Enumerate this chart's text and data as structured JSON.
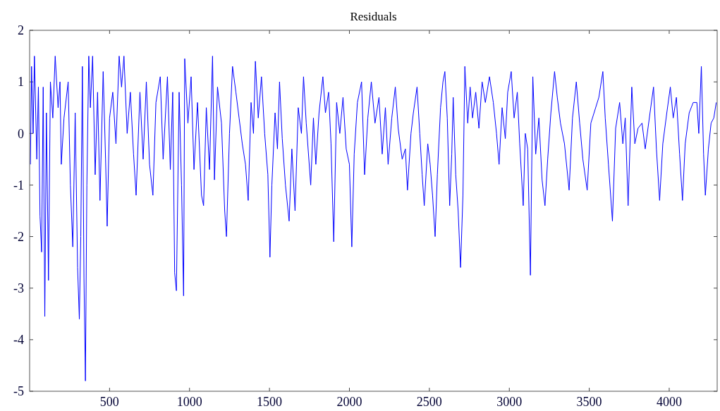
{
  "chart_data": {
    "type": "line",
    "title": "Residuals",
    "x": [
      5,
      12,
      22,
      30,
      45,
      55,
      65,
      75,
      85,
      95,
      105,
      118,
      130,
      145,
      160,
      178,
      190,
      198,
      215,
      241,
      255,
      270,
      285,
      300,
      311,
      320,
      330,
      340,
      349,
      358,
      370,
      380,
      394,
      410,
      425,
      440,
      460,
      475,
      485,
      500,
      520,
      540,
      560,
      575,
      590,
      610,
      630,
      650,
      666,
      690,
      710,
      730,
      750,
      771,
      790,
      817,
      835,
      862,
      880,
      895,
      907,
      918,
      935,
      950,
      963,
      970,
      990,
      1010,
      1028,
      1050,
      1075,
      1088,
      1105,
      1125,
      1144,
      1156,
      1175,
      1200,
      1220,
      1231,
      1250,
      1269,
      1290,
      1310,
      1330,
      1350,
      1367,
      1385,
      1400,
      1412,
      1430,
      1450,
      1470,
      1490,
      1503,
      1515,
      1535,
      1550,
      1563,
      1580,
      1600,
      1623,
      1640,
      1660,
      1680,
      1700,
      1713,
      1730,
      1758,
      1775,
      1790,
      1810,
      1834,
      1850,
      1870,
      1885,
      1902,
      1920,
      1940,
      1960,
      1980,
      2000,
      2015,
      2030,
      2050,
      2076,
      2095,
      2115,
      2137,
      2160,
      2185,
      2205,
      2225,
      2242,
      2265,
      2287,
      2305,
      2330,
      2350,
      2363,
      2385,
      2400,
      2423,
      2440,
      2455,
      2468,
      2490,
      2505,
      2520,
      2536,
      2550,
      2570,
      2585,
      2597,
      2612,
      2627,
      2640,
      2649,
      2665,
      2680,
      2695,
      2710,
      2722,
      2740,
      2755,
      2770,
      2790,
      2810,
      2830,
      2850,
      2876,
      2900,
      2920,
      2936,
      2955,
      2975,
      2990,
      3012,
      3030,
      3050,
      3065,
      3087,
      3100,
      3115,
      3132,
      3147,
      3165,
      3185,
      3205,
      3223,
      3240,
      3260,
      3283,
      3300,
      3320,
      3345,
      3374,
      3395,
      3419,
      3440,
      3460,
      3487,
      3510,
      3530,
      3560,
      3585,
      3600,
      3620,
      3645,
      3665,
      3690,
      3710,
      3725,
      3743,
      3766,
      3785,
      3805,
      3830,
      3850,
      3880,
      3902,
      3920,
      3940,
      3960,
      3985,
      4007,
      4025,
      4045,
      4065,
      4083,
      4100,
      4125,
      4150,
      4173,
      4185,
      4201,
      4215,
      4226,
      4245,
      4262,
      4279,
      4294
    ],
    "series": [
      {
        "color": "#0000ff",
        "values": [
          -0.6,
          1.3,
          0.0,
          1.5,
          -0.5,
          0.9,
          -1.6,
          -2.3,
          0.9,
          -3.55,
          0.4,
          -2.85,
          1.0,
          0.3,
          1.5,
          0.5,
          1.0,
          -0.6,
          0.3,
          1.0,
          -1.0,
          -2.2,
          0.4,
          -2.6,
          -3.6,
          -2.0,
          1.3,
          -2.8,
          -4.8,
          -1.0,
          1.5,
          0.5,
          1.5,
          -0.8,
          0.8,
          -1.3,
          1.2,
          -0.5,
          -1.8,
          0.3,
          0.8,
          -0.2,
          1.5,
          0.9,
          1.5,
          0.0,
          0.8,
          -0.4,
          -1.2,
          0.8,
          -0.5,
          1.0,
          -0.6,
          -1.2,
          0.6,
          1.1,
          -0.5,
          1.1,
          -0.7,
          0.8,
          -2.7,
          -3.05,
          0.8,
          -1.0,
          -3.15,
          1.45,
          0.2,
          1.1,
          -0.7,
          0.6,
          -1.2,
          -1.4,
          0.5,
          -0.7,
          1.5,
          -0.9,
          0.9,
          0.2,
          -1.5,
          -2.0,
          0.0,
          1.3,
          0.8,
          0.3,
          -0.2,
          -0.6,
          -1.3,
          0.6,
          0.0,
          1.4,
          0.3,
          1.1,
          0.0,
          -0.8,
          -2.4,
          -1.0,
          0.4,
          -0.3,
          1.0,
          -0.1,
          -1.0,
          -1.7,
          -0.3,
          -1.5,
          0.5,
          0.0,
          1.1,
          0.2,
          -1.0,
          0.3,
          -0.6,
          0.4,
          1.1,
          0.4,
          0.8,
          -0.2,
          -2.1,
          0.6,
          0.0,
          0.7,
          -0.3,
          -0.6,
          -2.2,
          -0.4,
          0.6,
          1.0,
          -0.8,
          0.3,
          1.0,
          0.2,
          0.7,
          -0.4,
          0.5,
          -0.6,
          0.3,
          0.9,
          0.1,
          -0.5,
          -0.3,
          -1.1,
          0.0,
          0.4,
          0.9,
          0.0,
          -0.8,
          -1.4,
          -0.2,
          -0.6,
          -1.2,
          -2.0,
          -0.8,
          0.5,
          1.0,
          1.2,
          0.3,
          -1.4,
          -0.4,
          0.7,
          -0.8,
          -1.5,
          -2.6,
          -1.2,
          1.3,
          0.2,
          0.9,
          0.3,
          0.8,
          0.1,
          1.0,
          0.6,
          1.1,
          0.6,
          0.0,
          -0.6,
          0.5,
          -0.1,
          0.8,
          1.2,
          0.3,
          0.8,
          -0.2,
          -1.4,
          0.0,
          -0.3,
          -2.75,
          1.1,
          -0.4,
          0.3,
          -0.9,
          -1.4,
          -0.5,
          0.4,
          1.2,
          0.7,
          0.2,
          -0.2,
          -1.1,
          0.3,
          1.0,
          0.2,
          -0.5,
          -1.1,
          0.2,
          0.4,
          0.7,
          1.2,
          0.3,
          -0.6,
          -1.7,
          0.1,
          0.6,
          -0.2,
          0.3,
          -1.4,
          0.9,
          -0.2,
          0.1,
          0.2,
          -0.3,
          0.4,
          0.9,
          -0.3,
          -1.3,
          -0.2,
          0.4,
          0.9,
          0.3,
          0.7,
          -0.4,
          -1.3,
          -0.2,
          0.4,
          0.6,
          0.6,
          0.0,
          1.3,
          -0.4,
          -1.2,
          -0.3,
          0.2,
          0.3,
          0.6
        ]
      }
    ],
    "xlim": [
      0,
      4300
    ],
    "xticks": [
      500,
      1000,
      1500,
      2000,
      2500,
      3000,
      3500,
      4000
    ],
    "ylim": [
      -5,
      2
    ],
    "yticks": [
      -5,
      -4,
      -3,
      -2,
      -1,
      0,
      1,
      2
    ],
    "grid": false
  }
}
